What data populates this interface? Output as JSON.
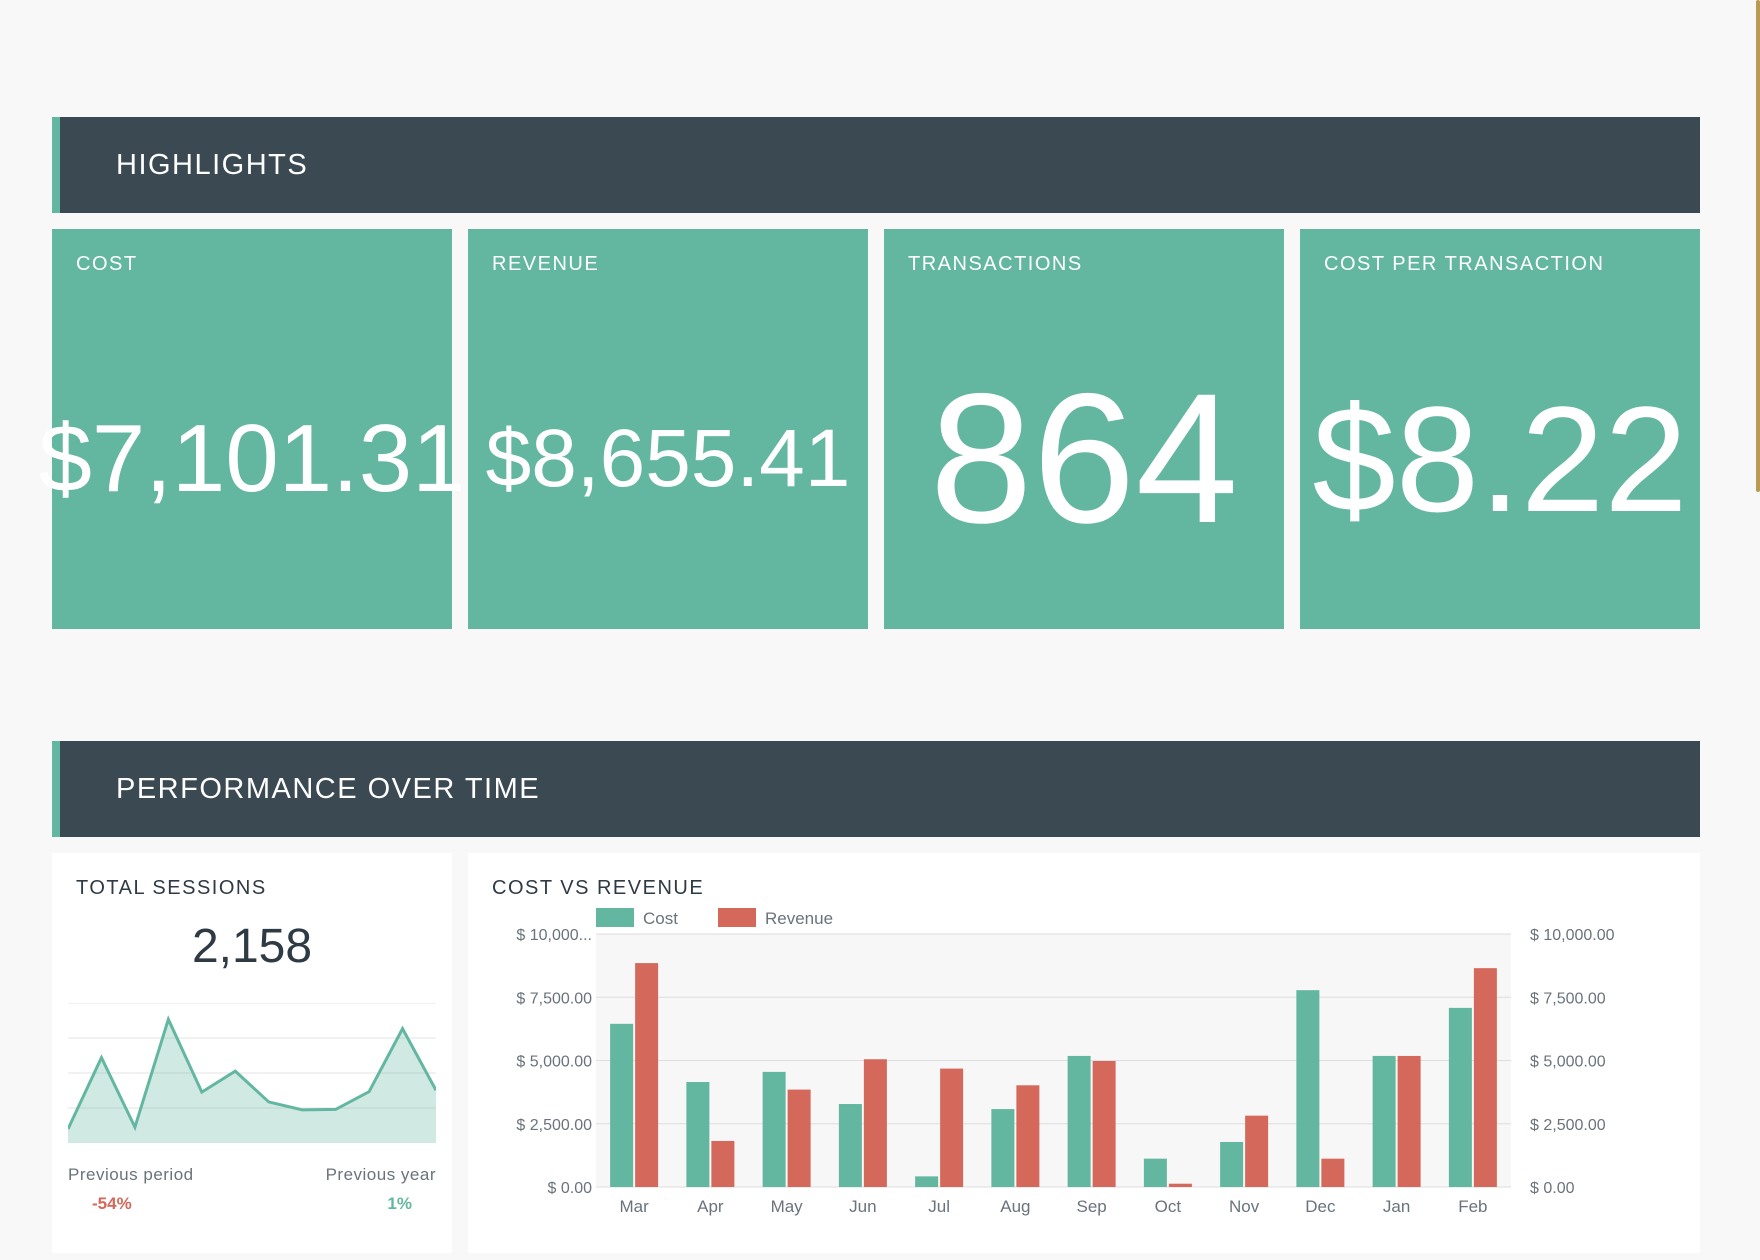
{
  "highlights": {
    "title": "HIGHLIGHTS",
    "cards": [
      {
        "label": "COST",
        "value": "$7,101.31"
      },
      {
        "label": "REVENUE",
        "value": "$8,655.41"
      },
      {
        "label": "TRANSACTIONS",
        "value": "864"
      },
      {
        "label": "COST PER TRANSACTION",
        "value": "$8.22"
      }
    ]
  },
  "performance": {
    "title": "PERFORMANCE OVER TIME",
    "sessions": {
      "title": "TOTAL SESSIONS",
      "value": "2,158",
      "previous_period_label": "Previous period",
      "previous_period_value": "-54%",
      "previous_year_label": "Previous year",
      "previous_year_value": "1%"
    },
    "cost_vs_revenue_title": "COST VS REVENUE"
  },
  "colors": {
    "accent": "#63b7a0",
    "header": "#3b4953",
    "revenue": "#d4685a",
    "negative": "#d4685a",
    "positive": "#63b7a0"
  },
  "chart_data": [
    {
      "type": "area",
      "title": "TOTAL SESSIONS",
      "values": [
        30,
        183,
        34,
        265,
        109,
        154,
        88,
        71,
        72,
        110,
        245,
        113
      ],
      "ylim": [
        0,
        300
      ],
      "grid": true
    },
    {
      "type": "bar",
      "title": "COST VS REVENUE",
      "categories": [
        "Mar",
        "Apr",
        "May",
        "Jun",
        "Jul",
        "Aug",
        "Sep",
        "Oct",
        "Nov",
        "Dec",
        "Jan",
        "Feb"
      ],
      "series": [
        {
          "name": "Cost",
          "values": [
            6450,
            4150,
            4550,
            3280,
            420,
            3080,
            5180,
            1120,
            1780,
            7780,
            5180,
            7080
          ],
          "color": "#63b7a0"
        },
        {
          "name": "Revenue",
          "values": [
            8850,
            1820,
            3850,
            5050,
            4680,
            4020,
            4980,
            130,
            2820,
            1120,
            5180,
            8650
          ],
          "color": "#d4685a"
        }
      ],
      "ylim": [
        0,
        10000
      ],
      "y_ticks": [
        "$ 0.00",
        "$ 2,500.00",
        "$ 5,000.00",
        "$ 7,500.00",
        "$ 10,000..."
      ],
      "y2_ticks": [
        "$ 0.00",
        "$ 2,500.00",
        "$ 5,000.00",
        "$ 7,500.00",
        "$ 10,000.00"
      ],
      "legend": "top-left",
      "grid": true
    }
  ]
}
